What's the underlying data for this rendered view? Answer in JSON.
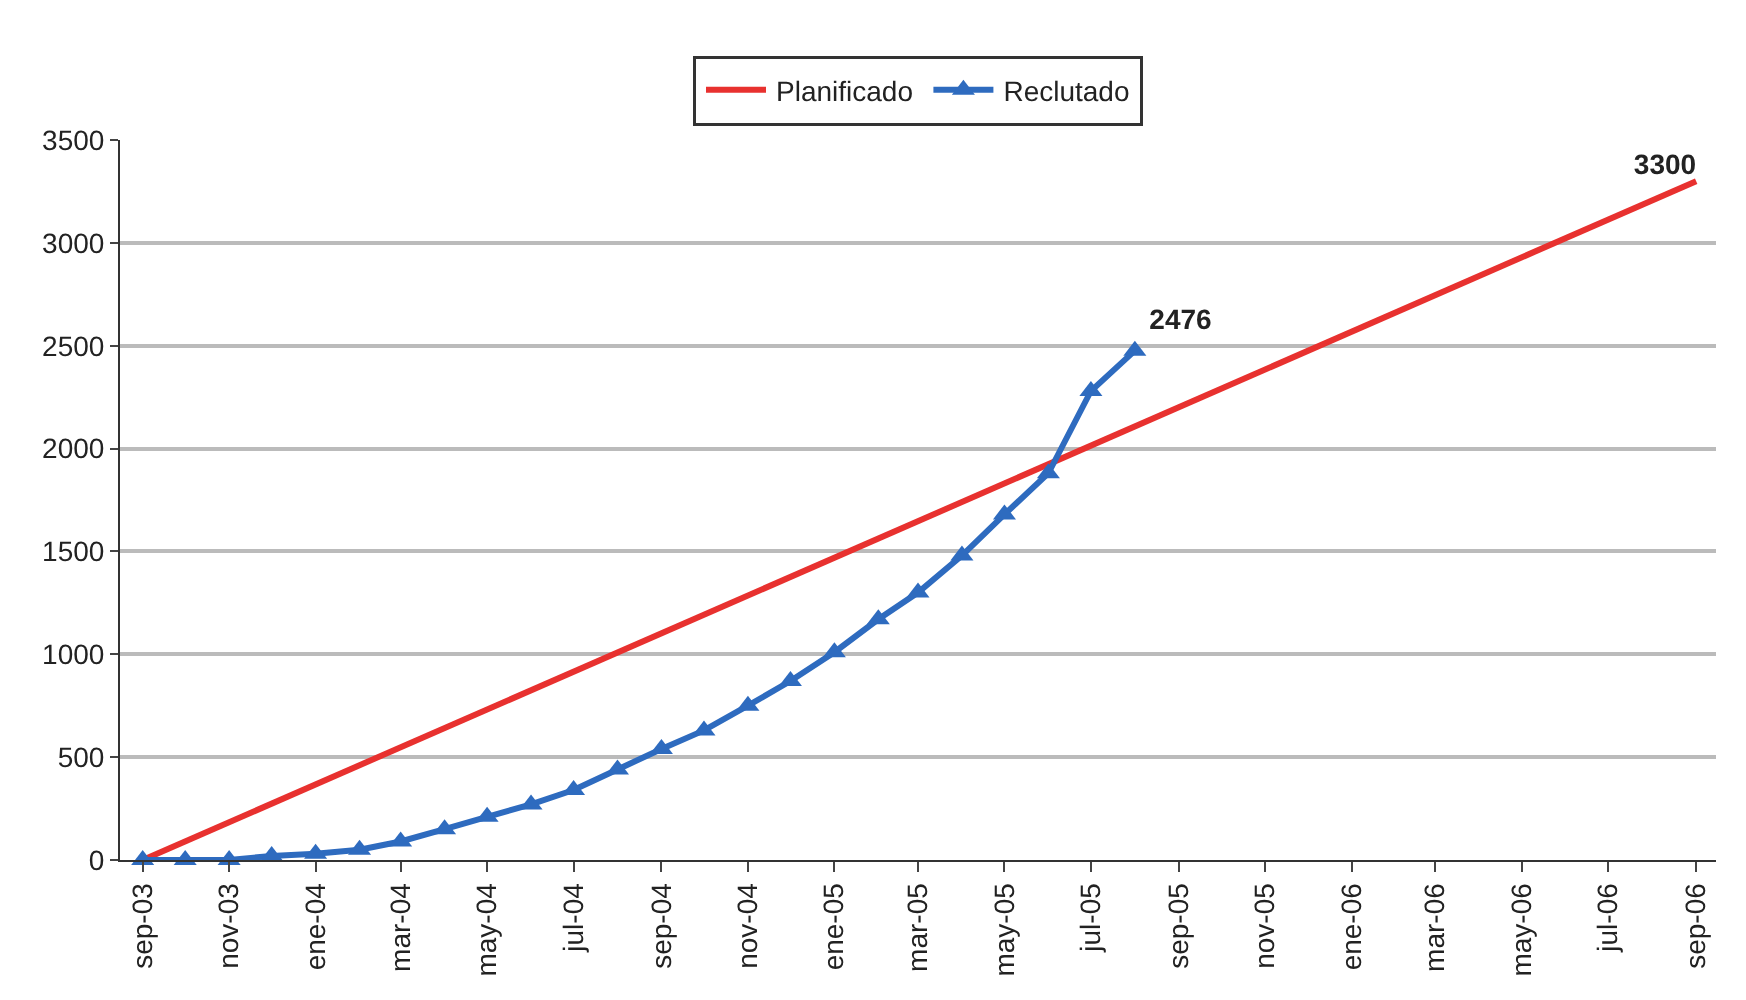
{
  "chart_data": {
    "type": "line",
    "series": [
      {
        "name": "Planificado",
        "color": "#e8312f",
        "marker": "none",
        "x": [
          "2003-09",
          "2006-09"
        ],
        "values": [
          0,
          3300
        ],
        "value_labels": [
          null,
          "3300"
        ]
      },
      {
        "name": "Reclutado",
        "color": "#2e6bbf",
        "marker": "triangle",
        "x": [
          "2003-09",
          "2003-10",
          "2003-11",
          "2003-12",
          "2004-01",
          "2004-02",
          "2004-03",
          "2004-04",
          "2004-05",
          "2004-06",
          "2004-07",
          "2004-08",
          "2004-09",
          "2004-10",
          "2004-11",
          "2004-12",
          "2005-01",
          "2005-02",
          "2005-03",
          "2005-04",
          "2005-05",
          "2005-06",
          "2005-07",
          "2005-08"
        ],
        "values": [
          0,
          0,
          0,
          20,
          30,
          50,
          90,
          150,
          210,
          270,
          340,
          440,
          540,
          630,
          750,
          870,
          1010,
          1170,
          1300,
          1480,
          1680,
          1880,
          2280,
          2476
        ],
        "value_labels": [
          null,
          null,
          null,
          null,
          null,
          null,
          null,
          null,
          null,
          null,
          null,
          null,
          null,
          null,
          null,
          null,
          null,
          null,
          null,
          null,
          null,
          null,
          null,
          "2476"
        ]
      }
    ],
    "xlim": [
      "2003-08-16",
      "2006-09-15"
    ],
    "xticks": [
      {
        "value": "2003-09",
        "label": "sep-03"
      },
      {
        "value": "2003-11",
        "label": "nov-03"
      },
      {
        "value": "2004-01",
        "label": "ene-04"
      },
      {
        "value": "2004-03",
        "label": "mar-04"
      },
      {
        "value": "2004-05",
        "label": "may-04"
      },
      {
        "value": "2004-07",
        "label": "jul-04"
      },
      {
        "value": "2004-09",
        "label": "sep-04"
      },
      {
        "value": "2004-11",
        "label": "nov-04"
      },
      {
        "value": "2005-01",
        "label": "ene-05"
      },
      {
        "value": "2005-03",
        "label": "mar-05"
      },
      {
        "value": "2005-05",
        "label": "may-05"
      },
      {
        "value": "2005-07",
        "label": "jul-05"
      },
      {
        "value": "2005-09",
        "label": "sep-05"
      },
      {
        "value": "2005-11",
        "label": "nov-05"
      },
      {
        "value": "2006-01",
        "label": "ene-06"
      },
      {
        "value": "2006-03",
        "label": "mar-06"
      },
      {
        "value": "2006-05",
        "label": "may-06"
      },
      {
        "value": "2006-07",
        "label": "jul-06"
      },
      {
        "value": "2006-09",
        "label": "sep-06"
      }
    ],
    "ylim": [
      0,
      3500
    ],
    "yticks": [
      0,
      500,
      1000,
      1500,
      2000,
      2500,
      3000,
      3500
    ],
    "grid": "y",
    "legend": "top",
    "line_style": "solid"
  }
}
